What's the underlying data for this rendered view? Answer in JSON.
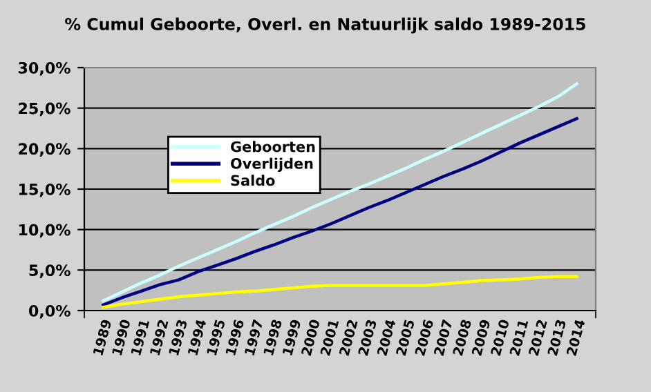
{
  "chart_data": {
    "type": "line",
    "title": "% Cumul Geboorte, Overl. en Natuurlijk saldo 1989-2015",
    "categories": [
      "1989",
      "1990",
      "1991",
      "1992",
      "1993",
      "1994",
      "1995",
      "1996",
      "1997",
      "1998",
      "1999",
      "2000",
      "2001",
      "2002",
      "2003",
      "2004",
      "2005",
      "2006",
      "2007",
      "2008",
      "2009",
      "2010",
      "2011",
      "2012",
      "2013",
      "2014"
    ],
    "series": [
      {
        "name": "Geboorten",
        "color": "#ccffff",
        "values": [
          1.2,
          2.3,
          3.4,
          4.4,
          5.5,
          6.5,
          7.5,
          8.5,
          9.6,
          10.6,
          11.6,
          12.7,
          13.7,
          14.7,
          15.6,
          16.6,
          17.6,
          18.7,
          19.7,
          20.8,
          21.9,
          23.0,
          24.1,
          25.2,
          26.4,
          28.0
        ]
      },
      {
        "name": "Overlijden",
        "color": "#000080",
        "values": [
          0.7,
          1.6,
          2.4,
          3.2,
          3.8,
          4.8,
          5.6,
          6.4,
          7.3,
          8.1,
          9.0,
          9.8,
          10.7,
          11.7,
          12.7,
          13.6,
          14.6,
          15.6,
          16.6,
          17.5,
          18.5,
          19.6,
          20.7,
          21.7,
          22.7,
          23.7
        ]
      },
      {
        "name": "Saldo",
        "color": "#ffff00",
        "values": [
          0.4,
          0.8,
          1.1,
          1.4,
          1.7,
          1.9,
          2.1,
          2.3,
          2.4,
          2.6,
          2.8,
          3.0,
          3.1,
          3.1,
          3.1,
          3.1,
          3.1,
          3.1,
          3.3,
          3.5,
          3.7,
          3.8,
          3.9,
          4.1,
          4.2,
          4.2
        ]
      }
    ],
    "ylim": [
      0,
      30
    ],
    "yticks": [
      {
        "value": 0,
        "label": "0,0%"
      },
      {
        "value": 5,
        "label": "5,0%"
      },
      {
        "value": 10,
        "label": "10,0%"
      },
      {
        "value": 15,
        "label": "15,0%"
      },
      {
        "value": 20,
        "label": "20,0%"
      },
      {
        "value": 25,
        "label": "25,0%"
      },
      {
        "value": 30,
        "label": "30,0%"
      }
    ],
    "grid": "y",
    "legend": "center left",
    "marker": "none",
    "line_style": "solid"
  }
}
